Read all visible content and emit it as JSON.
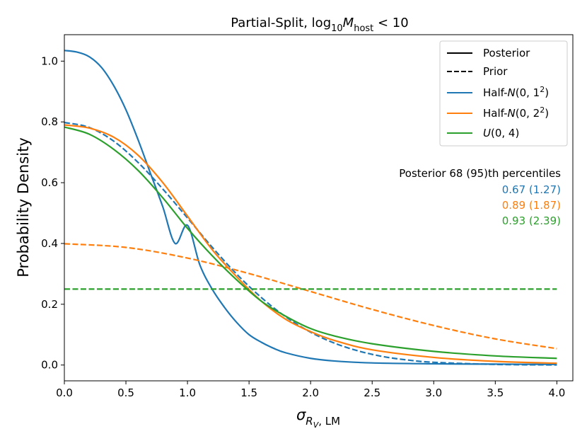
{
  "chart_data": {
    "type": "line",
    "title": {
      "prefix": "Partial-Split, log",
      "sub": "10",
      "var": "M",
      "var_sub": "host",
      "suffix": " < 10"
    },
    "xlabel": {
      "symbol": "σ",
      "sub_italic": "R",
      "sub_sub": "V",
      "sub_rest": ", LM"
    },
    "ylabel": "Probability Density",
    "xlim": [
      0,
      4.13
    ],
    "ylim": [
      -0.052,
      1.087
    ],
    "x_ticks": [
      0.0,
      0.5,
      1.0,
      1.5,
      2.0,
      2.5,
      3.0,
      3.5,
      4.0
    ],
    "x_tick_labels": [
      "0.0",
      "0.5",
      "1.0",
      "1.5",
      "2.0",
      "2.5",
      "3.0",
      "3.5",
      "4.0"
    ],
    "y_ticks": [
      0.0,
      0.2,
      0.4,
      0.6,
      0.8,
      1.0
    ],
    "y_tick_labels": [
      "0.0",
      "0.2",
      "0.4",
      "0.6",
      "0.8",
      "1.0"
    ],
    "colors": {
      "blue": "#1f77b4",
      "orange": "#ff7f0e",
      "green": "#2ca02c"
    },
    "legend": {
      "position": "upper-right",
      "style_entries": [
        {
          "label": "Posterior",
          "style": "solid"
        },
        {
          "label": "Prior",
          "style": "dashed"
        }
      ],
      "color_entries": [
        {
          "pre": "Half-",
          "dist": "N",
          "args": "(0, 1",
          "sup": "2",
          "post": ")",
          "color": "#1f77b4"
        },
        {
          "pre": "Half-",
          "dist": "N",
          "args": "(0, 2",
          "sup": "2",
          "post": ")",
          "color": "#ff7f0e"
        },
        {
          "pre": "",
          "dist": "U",
          "args": "(0, 4)",
          "sup": "",
          "post": "",
          "color": "#2ca02c"
        }
      ]
    },
    "percentiles": {
      "heading": "Posterior 68 (95)th percentiles",
      "rows": [
        {
          "text": "0.67 (1.27)",
          "color": "#1f77b4"
        },
        {
          "text": "0.89 (1.87)",
          "color": "#ff7f0e"
        },
        {
          "text": "0.93 (2.39)",
          "color": "#2ca02c"
        }
      ]
    },
    "series": [
      {
        "name": "Posterior Half-N(0,1^2)",
        "color": "#1f77b4",
        "style": "solid",
        "x": [
          0,
          0.1,
          0.2,
          0.3,
          0.4,
          0.5,
          0.6,
          0.7,
          0.8,
          0.9,
          1.0,
          1.1,
          1.2,
          1.3,
          1.4,
          1.5,
          1.6,
          1.7,
          1.8,
          2.0,
          2.2,
          2.5,
          3.0,
          3.5,
          4.0
        ],
        "y": [
          1.035,
          1.03,
          1.015,
          0.98,
          0.92,
          0.84,
          0.74,
          0.63,
          0.52,
          0.4,
          0.46,
          0.33,
          0.25,
          0.19,
          0.14,
          0.1,
          0.075,
          0.055,
          0.04,
          0.022,
          0.013,
          0.007,
          0.004,
          0.003,
          0.002
        ]
      },
      {
        "name": "Prior Half-N(0,1^2)",
        "color": "#1f77b4",
        "style": "dashed",
        "x": [
          0,
          0.2,
          0.4,
          0.6,
          0.8,
          1.0,
          1.2,
          1.4,
          1.6,
          1.8,
          2.0,
          2.2,
          2.4,
          2.6,
          2.8,
          3.0,
          3.5,
          4.0
        ],
        "y": [
          0.798,
          0.782,
          0.737,
          0.666,
          0.579,
          0.484,
          0.388,
          0.299,
          0.222,
          0.158,
          0.108,
          0.071,
          0.045,
          0.027,
          0.016,
          0.009,
          0.002,
          0.0003
        ]
      },
      {
        "name": "Posterior Half-N(0,2^2)",
        "color": "#ff7f0e",
        "style": "solid",
        "x": [
          0,
          0.2,
          0.4,
          0.6,
          0.8,
          1.0,
          1.2,
          1.4,
          1.6,
          1.8,
          2.0,
          2.2,
          2.5,
          3.0,
          3.5,
          4.0
        ],
        "y": [
          0.79,
          0.78,
          0.75,
          0.69,
          0.6,
          0.49,
          0.38,
          0.29,
          0.21,
          0.15,
          0.11,
          0.08,
          0.05,
          0.025,
          0.012,
          0.006
        ]
      },
      {
        "name": "Prior Half-N(0,2^2)",
        "color": "#ff7f0e",
        "style": "dashed",
        "x": [
          0,
          0.5,
          1.0,
          1.5,
          2.0,
          2.5,
          3.0,
          3.5,
          4.0
        ],
        "y": [
          0.399,
          0.387,
          0.352,
          0.301,
          0.242,
          0.183,
          0.13,
          0.086,
          0.054
        ]
      },
      {
        "name": "Posterior U(0,4)",
        "color": "#2ca02c",
        "style": "solid",
        "x": [
          0,
          0.2,
          0.4,
          0.6,
          0.8,
          1.0,
          1.2,
          1.4,
          1.6,
          1.8,
          2.0,
          2.2,
          2.5,
          3.0,
          3.5,
          4.0
        ],
        "y": [
          0.783,
          0.76,
          0.71,
          0.64,
          0.55,
          0.45,
          0.36,
          0.28,
          0.21,
          0.16,
          0.12,
          0.095,
          0.07,
          0.045,
          0.03,
          0.022
        ]
      },
      {
        "name": "Prior U(0,4)",
        "color": "#2ca02c",
        "style": "dashed",
        "x": [
          0,
          4.0
        ],
        "y": [
          0.25,
          0.25
        ]
      }
    ]
  }
}
